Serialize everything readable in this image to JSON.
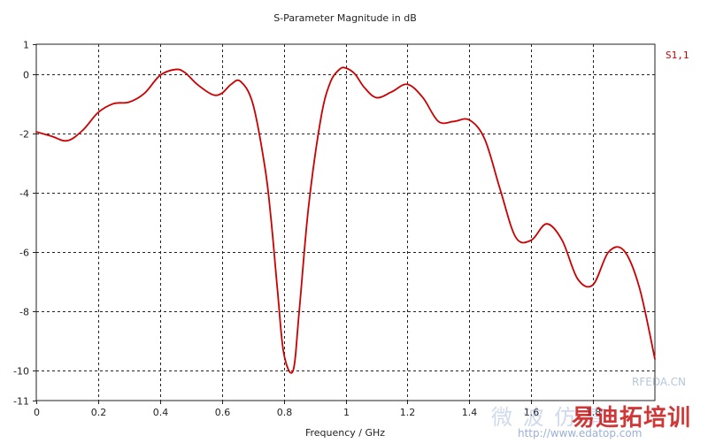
{
  "chart_data": {
    "type": "line",
    "title": "S-Parameter Magnitude in dB",
    "xlabel": "Frequency / GHz",
    "ylabel": "",
    "xlim": [
      0,
      2
    ],
    "ylim": [
      -11,
      1
    ],
    "xticks": [
      0,
      0.2,
      0.4,
      0.6,
      0.8,
      1,
      1.2,
      1.4,
      1.6,
      1.8
    ],
    "xtick_labels": [
      "0",
      "0.2",
      "0.4",
      "0.6",
      "0.8",
      "1",
      "1.2",
      "1.4",
      "1.6",
      "1.8"
    ],
    "yticks": [
      1,
      0,
      -2,
      -4,
      -6,
      -8,
      -10,
      -11
    ],
    "ytick_labels": [
      "1",
      "0",
      "-2",
      "-4",
      "-6",
      "-8",
      "-10",
      "-11"
    ],
    "grid": true,
    "legend_position": "top-right",
    "series": [
      {
        "name": "S1,1",
        "color": "#cc0000",
        "x": [
          0,
          0.05,
          0.1,
          0.15,
          0.2,
          0.25,
          0.3,
          0.35,
          0.4,
          0.45,
          0.48,
          0.52,
          0.57,
          0.6,
          0.63,
          0.66,
          0.7,
          0.74,
          0.76,
          0.78,
          0.8,
          0.83,
          0.85,
          0.88,
          0.92,
          0.95,
          0.98,
          1.0,
          1.03,
          1.06,
          1.1,
          1.15,
          1.2,
          1.25,
          1.3,
          1.35,
          1.4,
          1.45,
          1.5,
          1.55,
          1.6,
          1.65,
          1.7,
          1.75,
          1.8,
          1.85,
          1.9,
          1.95,
          2.0
        ],
        "y": [
          -1.95,
          -2.1,
          -2.25,
          -1.9,
          -1.3,
          -1.0,
          -0.95,
          -0.65,
          -0.05,
          0.15,
          0.05,
          -0.35,
          -0.7,
          -0.65,
          -0.35,
          -0.25,
          -1.0,
          -3.2,
          -5.0,
          -7.3,
          -9.4,
          -10.0,
          -8.0,
          -4.5,
          -1.5,
          -0.3,
          0.15,
          0.2,
          0.0,
          -0.45,
          -0.8,
          -0.6,
          -0.35,
          -0.8,
          -1.6,
          -1.6,
          -1.55,
          -2.2,
          -3.9,
          -5.5,
          -5.6,
          -5.05,
          -5.6,
          -6.9,
          -7.1,
          -6.0,
          -5.95,
          -7.2,
          -9.6
        ]
      }
    ]
  },
  "watermark": {
    "site": "RFEDA.CN",
    "brand": "易迪拓培训",
    "url": "http://www.edatop.com",
    "faint": "微 波 仿 真"
  }
}
